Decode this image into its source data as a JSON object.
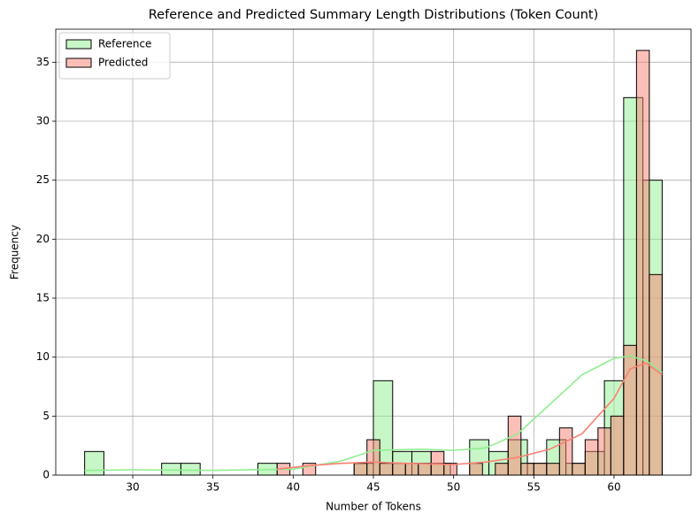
{
  "chart_data": {
    "type": "histogram",
    "title": "Reference and Predicted Summary Length Distributions (Token Count)",
    "xlabel": "Number of Tokens",
    "ylabel": "Frequency",
    "xlim": [
      25.2,
      64.8
    ],
    "ylim": [
      0,
      37.8
    ],
    "xticks": [
      30,
      35,
      40,
      45,
      50,
      55,
      60
    ],
    "yticks": [
      0,
      5,
      10,
      15,
      20,
      25,
      30,
      35
    ],
    "grid": true,
    "legend": "upper left",
    "series": [
      {
        "name": "Reference",
        "color": "#90ee90",
        "bins": [
          27,
          28.2,
          29.4,
          30.6,
          31.8,
          33,
          34.2,
          35.4,
          36.6,
          37.8,
          39,
          40.2,
          41.4,
          42.6,
          43.8,
          45,
          46.2,
          47.4,
          48.6,
          49.8,
          51,
          52.2,
          53.4,
          54.6,
          55.8,
          57,
          58.2,
          59.4,
          60.6,
          61.8,
          63
        ],
        "values": [
          2,
          0,
          0,
          0,
          1,
          1,
          0,
          0,
          0,
          1,
          0,
          0,
          0,
          0,
          1,
          8,
          2,
          2,
          1,
          0,
          3,
          2,
          3,
          1,
          3,
          1,
          2,
          8,
          32,
          25
        ],
        "kde": {
          "x": [
            27,
            30,
            35,
            40,
            43,
            45,
            48,
            50,
            52,
            54,
            56,
            58,
            60,
            61,
            62,
            63
          ],
          "y": [
            0.4,
            0.45,
            0.4,
            0.5,
            1.2,
            2.1,
            2.2,
            2.1,
            2.3,
            3.5,
            6,
            8.5,
            9.9,
            10.1,
            9.7,
            8.7
          ]
        }
      },
      {
        "name": "Predicted",
        "color": "#fa8072",
        "bins": [
          39,
          39.8,
          40.6,
          41.4,
          42.2,
          43,
          43.8,
          44.6,
          45.4,
          46.2,
          47,
          47.8,
          48.6,
          49.4,
          50.2,
          51,
          51.8,
          52.6,
          53.4,
          54.2,
          55,
          55.8,
          56.6,
          57.4,
          58.2,
          59,
          59.8,
          60.6,
          61.4,
          62.2,
          63
        ],
        "values": [
          1,
          0,
          1,
          0,
          0,
          0,
          1,
          3,
          1,
          1,
          1,
          1,
          2,
          1,
          0,
          1,
          0,
          1,
          5,
          1,
          1,
          1,
          4,
          1,
          3,
          4,
          5,
          11,
          36,
          17
        ],
        "kde": {
          "x": [
            39,
            41,
            43,
            45,
            47,
            50,
            52,
            54,
            56,
            58,
            60,
            61,
            62,
            63
          ],
          "y": [
            0.5,
            0.8,
            1,
            1.1,
            1,
            0.9,
            1.1,
            1.5,
            2.2,
            3.5,
            6.5,
            9,
            9.5,
            8.5
          ]
        }
      }
    ]
  }
}
